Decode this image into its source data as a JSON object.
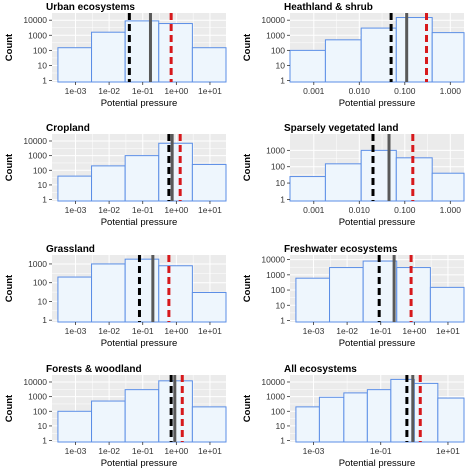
{
  "colors": {
    "panel_bg": "#ebebeb",
    "grid": "#ffffff",
    "bar_fill": "#eef6fd",
    "bar_stroke": "#5b8ee6",
    "dashed_black": "#000000",
    "solid_grey": "#595959",
    "dashed_red": "#d7191c"
  },
  "chart_data": [
    {
      "type": "bar",
      "title": "Urban ecosystems",
      "xlabel": "Potential pressure",
      "ylabel": "Count",
      "xscale": "log",
      "yscale": "log",
      "xlim": [
        0.0002,
        30
      ],
      "ylim": [
        0.8,
        30000
      ],
      "x_ticks": [
        0.001,
        0.01,
        0.1,
        1,
        10
      ],
      "x_tick_labels": [
        "1e-03",
        "1e-02",
        "1e-01",
        "1e+00",
        "1e+01"
      ],
      "y_ticks": [
        1,
        10,
        100,
        1000,
        10000
      ],
      "y_tick_labels": [
        "1",
        "10",
        "100",
        "1000",
        "10000"
      ],
      "bins": [
        {
          "x_start": 0.0003,
          "x_end": 0.003,
          "count": 150
        },
        {
          "x_start": 0.003,
          "x_end": 0.03,
          "count": 1600
        },
        {
          "x_start": 0.03,
          "x_end": 0.3,
          "count": 9000
        },
        {
          "x_start": 0.3,
          "x_end": 3,
          "count": 6000
        },
        {
          "x_start": 3,
          "x_end": 30,
          "count": 150
        }
      ],
      "reference_lines": [
        {
          "style": "dashed-black",
          "x": 0.04
        },
        {
          "style": "solid-grey",
          "x": 0.17
        },
        {
          "style": "dashed-red",
          "x": 0.7
        }
      ],
      "grid": true
    },
    {
      "type": "bar",
      "title": "Heathland & shrub",
      "xlabel": "Potential pressure",
      "ylabel": "Count",
      "xscale": "log",
      "yscale": "log",
      "xlim": [
        0.0003,
        2
      ],
      "ylim": [
        0.8,
        30000
      ],
      "x_ticks": [
        0.001,
        0.01,
        0.1,
        1
      ],
      "x_tick_labels": [
        "0.001",
        "0.010",
        "0.100",
        "1.000"
      ],
      "y_ticks": [
        1,
        10,
        100,
        1000,
        10000
      ],
      "y_tick_labels": [
        "1",
        "10",
        "100",
        "1000",
        "10000"
      ],
      "bins": [
        {
          "x_start": 0.0003,
          "x_end": 0.0018,
          "count": 100
        },
        {
          "x_start": 0.0018,
          "x_end": 0.011,
          "count": 500
        },
        {
          "x_start": 0.011,
          "x_end": 0.065,
          "count": 3000
        },
        {
          "x_start": 0.065,
          "x_end": 0.4,
          "count": 15000
        },
        {
          "x_start": 0.4,
          "x_end": 2,
          "count": 1500
        }
      ],
      "reference_lines": [
        {
          "style": "dashed-black",
          "x": 0.05
        },
        {
          "style": "solid-grey",
          "x": 0.11
        },
        {
          "style": "dashed-red",
          "x": 0.3
        }
      ],
      "grid": true
    },
    {
      "type": "bar",
      "title": "Cropland",
      "xlabel": "Potential pressure",
      "ylabel": "Count",
      "xscale": "log",
      "yscale": "log",
      "xlim": [
        0.0002,
        30
      ],
      "ylim": [
        0.8,
        30000
      ],
      "x_ticks": [
        0.001,
        0.01,
        0.1,
        1,
        10
      ],
      "x_tick_labels": [
        "1e-03",
        "1e-02",
        "1e-01",
        "1e+00",
        "1e+01"
      ],
      "y_ticks": [
        1,
        10,
        100,
        1000,
        10000
      ],
      "y_tick_labels": [
        "1",
        "10",
        "100",
        "1000",
        "10000"
      ],
      "bins": [
        {
          "x_start": 0.0003,
          "x_end": 0.003,
          "count": 40
        },
        {
          "x_start": 0.003,
          "x_end": 0.03,
          "count": 200
        },
        {
          "x_start": 0.03,
          "x_end": 0.3,
          "count": 1000
        },
        {
          "x_start": 0.3,
          "x_end": 3,
          "count": 7000
        },
        {
          "x_start": 3,
          "x_end": 30,
          "count": 250
        }
      ],
      "reference_lines": [
        {
          "style": "dashed-black",
          "x": 0.6
        },
        {
          "style": "solid-grey",
          "x": 0.75
        },
        {
          "style": "dashed-red",
          "x": 1.3
        }
      ],
      "grid": true
    },
    {
      "type": "bar",
      "title": "Sparsely vegetated land",
      "xlabel": "Potential pressure",
      "ylabel": "Count",
      "xscale": "log",
      "yscale": "log",
      "xlim": [
        0.0003,
        2
      ],
      "ylim": [
        0.8,
        10000
      ],
      "x_ticks": [
        0.001,
        0.01,
        0.1,
        1
      ],
      "x_tick_labels": [
        "0.001",
        "0.010",
        "0.100",
        "1.000"
      ],
      "y_ticks": [
        1,
        10,
        100,
        1000
      ],
      "y_tick_labels": [
        "1",
        "10",
        "100",
        "1000"
      ],
      "bins": [
        {
          "x_start": 0.0003,
          "x_end": 0.0018,
          "count": 25
        },
        {
          "x_start": 0.0018,
          "x_end": 0.011,
          "count": 150
        },
        {
          "x_start": 0.011,
          "x_end": 0.065,
          "count": 1000
        },
        {
          "x_start": 0.065,
          "x_end": 0.4,
          "count": 350
        },
        {
          "x_start": 0.4,
          "x_end": 2,
          "count": 40
        }
      ],
      "reference_lines": [
        {
          "style": "dashed-black",
          "x": 0.02
        },
        {
          "style": "solid-grey",
          "x": 0.045
        },
        {
          "style": "dashed-red",
          "x": 0.15
        }
      ],
      "grid": true
    },
    {
      "type": "bar",
      "title": "Grassland",
      "xlabel": "Potential pressure",
      "ylabel": "Count",
      "xscale": "log",
      "yscale": "log",
      "xlim": [
        0.0002,
        30
      ],
      "ylim": [
        0.8,
        3000
      ],
      "x_ticks": [
        0.001,
        0.01,
        0.1,
        1,
        10
      ],
      "x_tick_labels": [
        "1e-03",
        "1e-02",
        "1e-01",
        "1e+00",
        "1e+01"
      ],
      "y_ticks": [
        1,
        10,
        100,
        1000
      ],
      "y_tick_labels": [
        "1",
        "10",
        "100",
        "1000"
      ],
      "bins": [
        {
          "x_start": 0.0003,
          "x_end": 0.003,
          "count": 200
        },
        {
          "x_start": 0.003,
          "x_end": 0.03,
          "count": 1000
        },
        {
          "x_start": 0.03,
          "x_end": 0.3,
          "count": 1800
        },
        {
          "x_start": 0.3,
          "x_end": 3,
          "count": 800
        },
        {
          "x_start": 3,
          "x_end": 30,
          "count": 30
        }
      ],
      "reference_lines": [
        {
          "style": "dashed-black",
          "x": 0.08
        },
        {
          "style": "solid-grey",
          "x": 0.2
        },
        {
          "style": "dashed-red",
          "x": 0.6
        }
      ],
      "grid": true
    },
    {
      "type": "bar",
      "title": "Freshwater ecosystems",
      "xlabel": "Potential pressure",
      "ylabel": "Count",
      "xscale": "log",
      "yscale": "log",
      "xlim": [
        0.0002,
        30
      ],
      "ylim": [
        0.8,
        20000
      ],
      "x_ticks": [
        0.001,
        0.01,
        0.1,
        1,
        10
      ],
      "x_tick_labels": [
        "1e-03",
        "1e-02",
        "1e-01",
        "1e+00",
        "1e+01"
      ],
      "y_ticks": [
        1,
        10,
        100,
        1000,
        10000
      ],
      "y_tick_labels": [
        "1",
        "10",
        "100",
        "1000",
        "10000"
      ],
      "bins": [
        {
          "x_start": 0.0003,
          "x_end": 0.003,
          "count": 600
        },
        {
          "x_start": 0.003,
          "x_end": 0.03,
          "count": 3000
        },
        {
          "x_start": 0.03,
          "x_end": 0.3,
          "count": 8000
        },
        {
          "x_start": 0.3,
          "x_end": 3,
          "count": 3000
        },
        {
          "x_start": 3,
          "x_end": 30,
          "count": 150
        }
      ],
      "reference_lines": [
        {
          "style": "dashed-black",
          "x": 0.09
        },
        {
          "style": "solid-grey",
          "x": 0.25
        },
        {
          "style": "dashed-red",
          "x": 0.8
        }
      ],
      "grid": true
    },
    {
      "type": "bar",
      "title": "Forests & woodland",
      "xlabel": "Potential pressure",
      "ylabel": "Count",
      "xscale": "log",
      "yscale": "log",
      "xlim": [
        0.0002,
        30
      ],
      "ylim": [
        0.8,
        30000
      ],
      "x_ticks": [
        0.001,
        0.01,
        0.1,
        1,
        10
      ],
      "x_tick_labels": [
        "1e-03",
        "1e-02",
        "1e-01",
        "1e+00",
        "1e+01"
      ],
      "y_ticks": [
        1,
        10,
        100,
        1000,
        10000
      ],
      "y_tick_labels": [
        "1",
        "10",
        "100",
        "1000",
        "10000"
      ],
      "bins": [
        {
          "x_start": 0.0003,
          "x_end": 0.003,
          "count": 100
        },
        {
          "x_start": 0.003,
          "x_end": 0.03,
          "count": 500
        },
        {
          "x_start": 0.03,
          "x_end": 0.3,
          "count": 3000
        },
        {
          "x_start": 0.3,
          "x_end": 3,
          "count": 12000
        },
        {
          "x_start": 3,
          "x_end": 30,
          "count": 200
        }
      ],
      "reference_lines": [
        {
          "style": "dashed-black",
          "x": 0.7
        },
        {
          "style": "solid-grey",
          "x": 0.9
        },
        {
          "style": "dashed-red",
          "x": 1.5
        }
      ],
      "grid": true
    },
    {
      "type": "bar",
      "title": "All ecosystems",
      "xlabel": "Potential pressure",
      "ylabel": "Count",
      "xscale": "log",
      "yscale": "log",
      "xlim": [
        0.0002,
        30
      ],
      "ylim": [
        0.8,
        30000
      ],
      "x_ticks": [
        0.001,
        0.1,
        10
      ],
      "x_tick_labels": [
        "1e-03",
        "1e-01",
        "1e+01"
      ],
      "y_ticks": [
        1,
        10,
        100,
        1000,
        10000
      ],
      "y_tick_labels": [
        "1",
        "10",
        "100",
        "1000",
        "10000"
      ],
      "bins": [
        {
          "x_start": 0.0003,
          "x_end": 0.0015,
          "count": 200
        },
        {
          "x_start": 0.0015,
          "x_end": 0.008,
          "count": 900
        },
        {
          "x_start": 0.008,
          "x_end": 0.04,
          "count": 1800
        },
        {
          "x_start": 0.04,
          "x_end": 0.2,
          "count": 3000
        },
        {
          "x_start": 0.2,
          "x_end": 1,
          "count": 15000
        },
        {
          "x_start": 1,
          "x_end": 5,
          "count": 8000
        },
        {
          "x_start": 5,
          "x_end": 30,
          "count": 800
        }
      ],
      "reference_lines": [
        {
          "style": "dashed-black",
          "x": 0.6
        },
        {
          "style": "solid-grey",
          "x": 0.9
        },
        {
          "style": "dashed-red",
          "x": 1.5
        }
      ],
      "grid": true
    }
  ]
}
